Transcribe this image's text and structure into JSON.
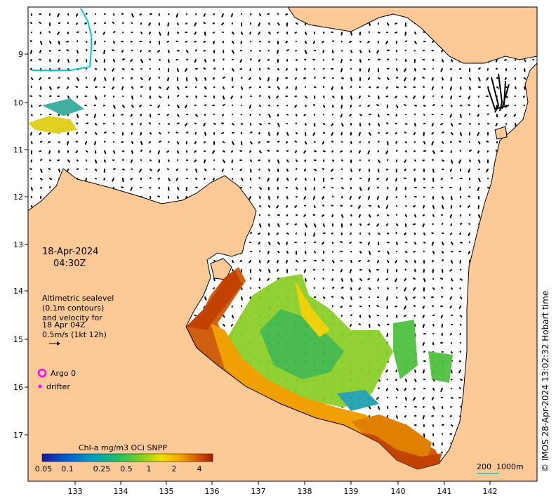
{
  "map": {
    "date_line1": "18-Apr-2024",
    "date_line2": "04:30Z",
    "info_lines": [
      "Altimetric sealevel",
      "(0.1m contours)",
      "and velocity for",
      "18 Apr 04Z",
      "0.5m/s (1kt 12h)"
    ],
    "legend": {
      "argo_label": "Argo 0",
      "drifter_label": "drifter",
      "argo_color": "#ff00ff",
      "drifter_color": "#ff00ff"
    },
    "colorbar": {
      "title": "Chl-a mg/m3 OCi SNPP",
      "ticks": [
        "0.05",
        "0.1",
        "0.25",
        "0.5",
        "1",
        "2",
        "4"
      ]
    },
    "scale_bar": {
      "label_km": "200",
      "label_depth": "1000m"
    },
    "credit": "© IMOS 28-Apr-2024 13:02:32 Hobart time",
    "x_ticks": [
      "133",
      "134",
      "135",
      "136",
      "137",
      "138",
      "139",
      "140",
      "141",
      "142"
    ],
    "y_ticks": [
      "9",
      "10",
      "11",
      "12",
      "13",
      "14",
      "15",
      "16",
      "17"
    ],
    "colors": {
      "land": "#fcc997",
      "sea": "#ffffff",
      "coast": "#000000",
      "contour": "#00cccc"
    }
  }
}
